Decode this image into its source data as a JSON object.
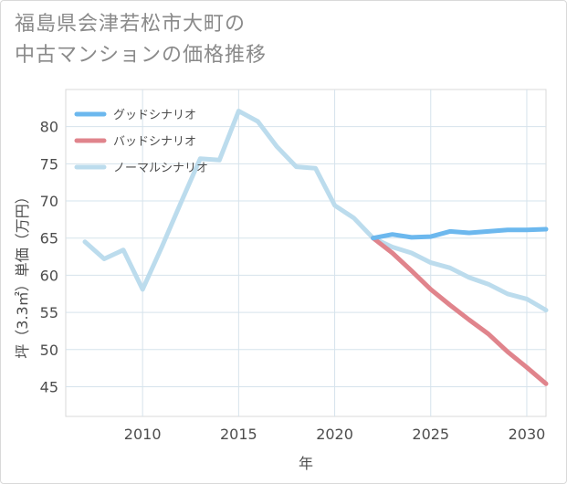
{
  "title_lines": [
    "福島県会津若松市大町の",
    "中古マンションの価格推移"
  ],
  "chart_data": {
    "type": "line",
    "title": "福島県会津若松市大町の中古マンションの価格推移",
    "xlabel": "年",
    "ylabel": "坪（3.3㎡）単価（万円）",
    "xlim": [
      2006,
      2031
    ],
    "ylim": [
      41,
      85
    ],
    "xticks": [
      2010,
      2015,
      2020,
      2025,
      2030
    ],
    "yticks": [
      45,
      50,
      55,
      60,
      65,
      70,
      75,
      80
    ],
    "legend_position": "top-left",
    "series": [
      {
        "name": "グッドシナリオ",
        "color": "#6cb8ee",
        "x": [
          2022,
          2023,
          2024,
          2025,
          2026,
          2027,
          2028,
          2029,
          2030,
          2031
        ],
        "values": [
          65.0,
          65.5,
          65.1,
          65.2,
          65.9,
          65.7,
          65.9,
          66.1,
          66.1,
          66.2
        ]
      },
      {
        "name": "バッドシナリオ",
        "color": "#e0848c",
        "x": [
          2022,
          2023,
          2024,
          2025,
          2026,
          2027,
          2028,
          2029,
          2030,
          2031
        ],
        "values": [
          65.0,
          63.0,
          60.6,
          58.1,
          56.0,
          54.0,
          52.1,
          49.7,
          47.6,
          45.4
        ]
      },
      {
        "name": "ノーマルシナリオ",
        "color": "#bcdced",
        "x": [
          2007,
          2008,
          2009,
          2010,
          2011,
          2012,
          2013,
          2014,
          2015,
          2016,
          2017,
          2018,
          2019,
          2020,
          2021,
          2022,
          2023,
          2024,
          2025,
          2026,
          2027,
          2028,
          2029,
          2030,
          2031
        ],
        "values": [
          64.5,
          62.2,
          63.4,
          58.1,
          63.8,
          69.8,
          75.7,
          75.5,
          82.1,
          80.7,
          77.3,
          74.6,
          74.4,
          69.4,
          67.7,
          65.0,
          63.8,
          63.0,
          61.7,
          61.0,
          59.7,
          58.8,
          57.5,
          56.8,
          55.3
        ]
      }
    ]
  }
}
